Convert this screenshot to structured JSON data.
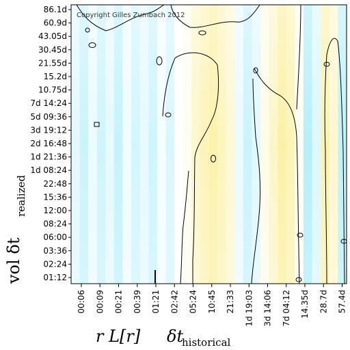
{
  "chart_data": {
    "type": "heatmap",
    "title": "",
    "copyright": "Copyright Gilles Zumbach 2012",
    "ylabel": {
      "main": "vol  δt",
      "subscript": "realized"
    },
    "xlabel": {
      "prefix": "r L[r]",
      "main": "δt",
      "subscript": "historical"
    },
    "yticks": [
      "86.1d",
      "60.9d",
      "43.05d",
      "30.45d",
      "21.55d",
      "15.2d",
      "10.75d",
      "7d 14:24",
      "5d 09:36",
      "3d 19:12",
      "2d 16:48",
      "1d 21:36",
      "1d 08:24",
      "22:48",
      "15:36",
      "12:00",
      "08:24",
      "06:00",
      "03:36",
      "02:24",
      "01:12"
    ],
    "xticks": [
      "00:06",
      "00:09",
      "00:21",
      "00:39",
      "01:21",
      "02:42",
      "05:24",
      "10:45",
      "21:33",
      "1d 19:03",
      "3d 14:06",
      "7d 04:12",
      "14.35d",
      "28.7d",
      "57.4d"
    ],
    "colors": {
      "negative": "#22d0ee",
      "zero": "#ffffff",
      "positive": "#f5dd2a",
      "contour": "#000000"
    },
    "column_values": [
      -0.12,
      -0.22,
      -0.08,
      -0.2,
      -0.1,
      -0.24,
      -0.06,
      -0.18,
      -0.1,
      -0.2,
      -0.04,
      -0.16,
      0.0,
      0.06,
      0.22,
      0.3,
      0.36,
      0.28,
      0.18,
      -0.08,
      -0.22,
      -0.12,
      0.1,
      0.24,
      0.38,
      0.3,
      0.06,
      -0.3,
      -0.14,
      0.32,
      0.2,
      -0.26
    ],
    "grid": false
  }
}
